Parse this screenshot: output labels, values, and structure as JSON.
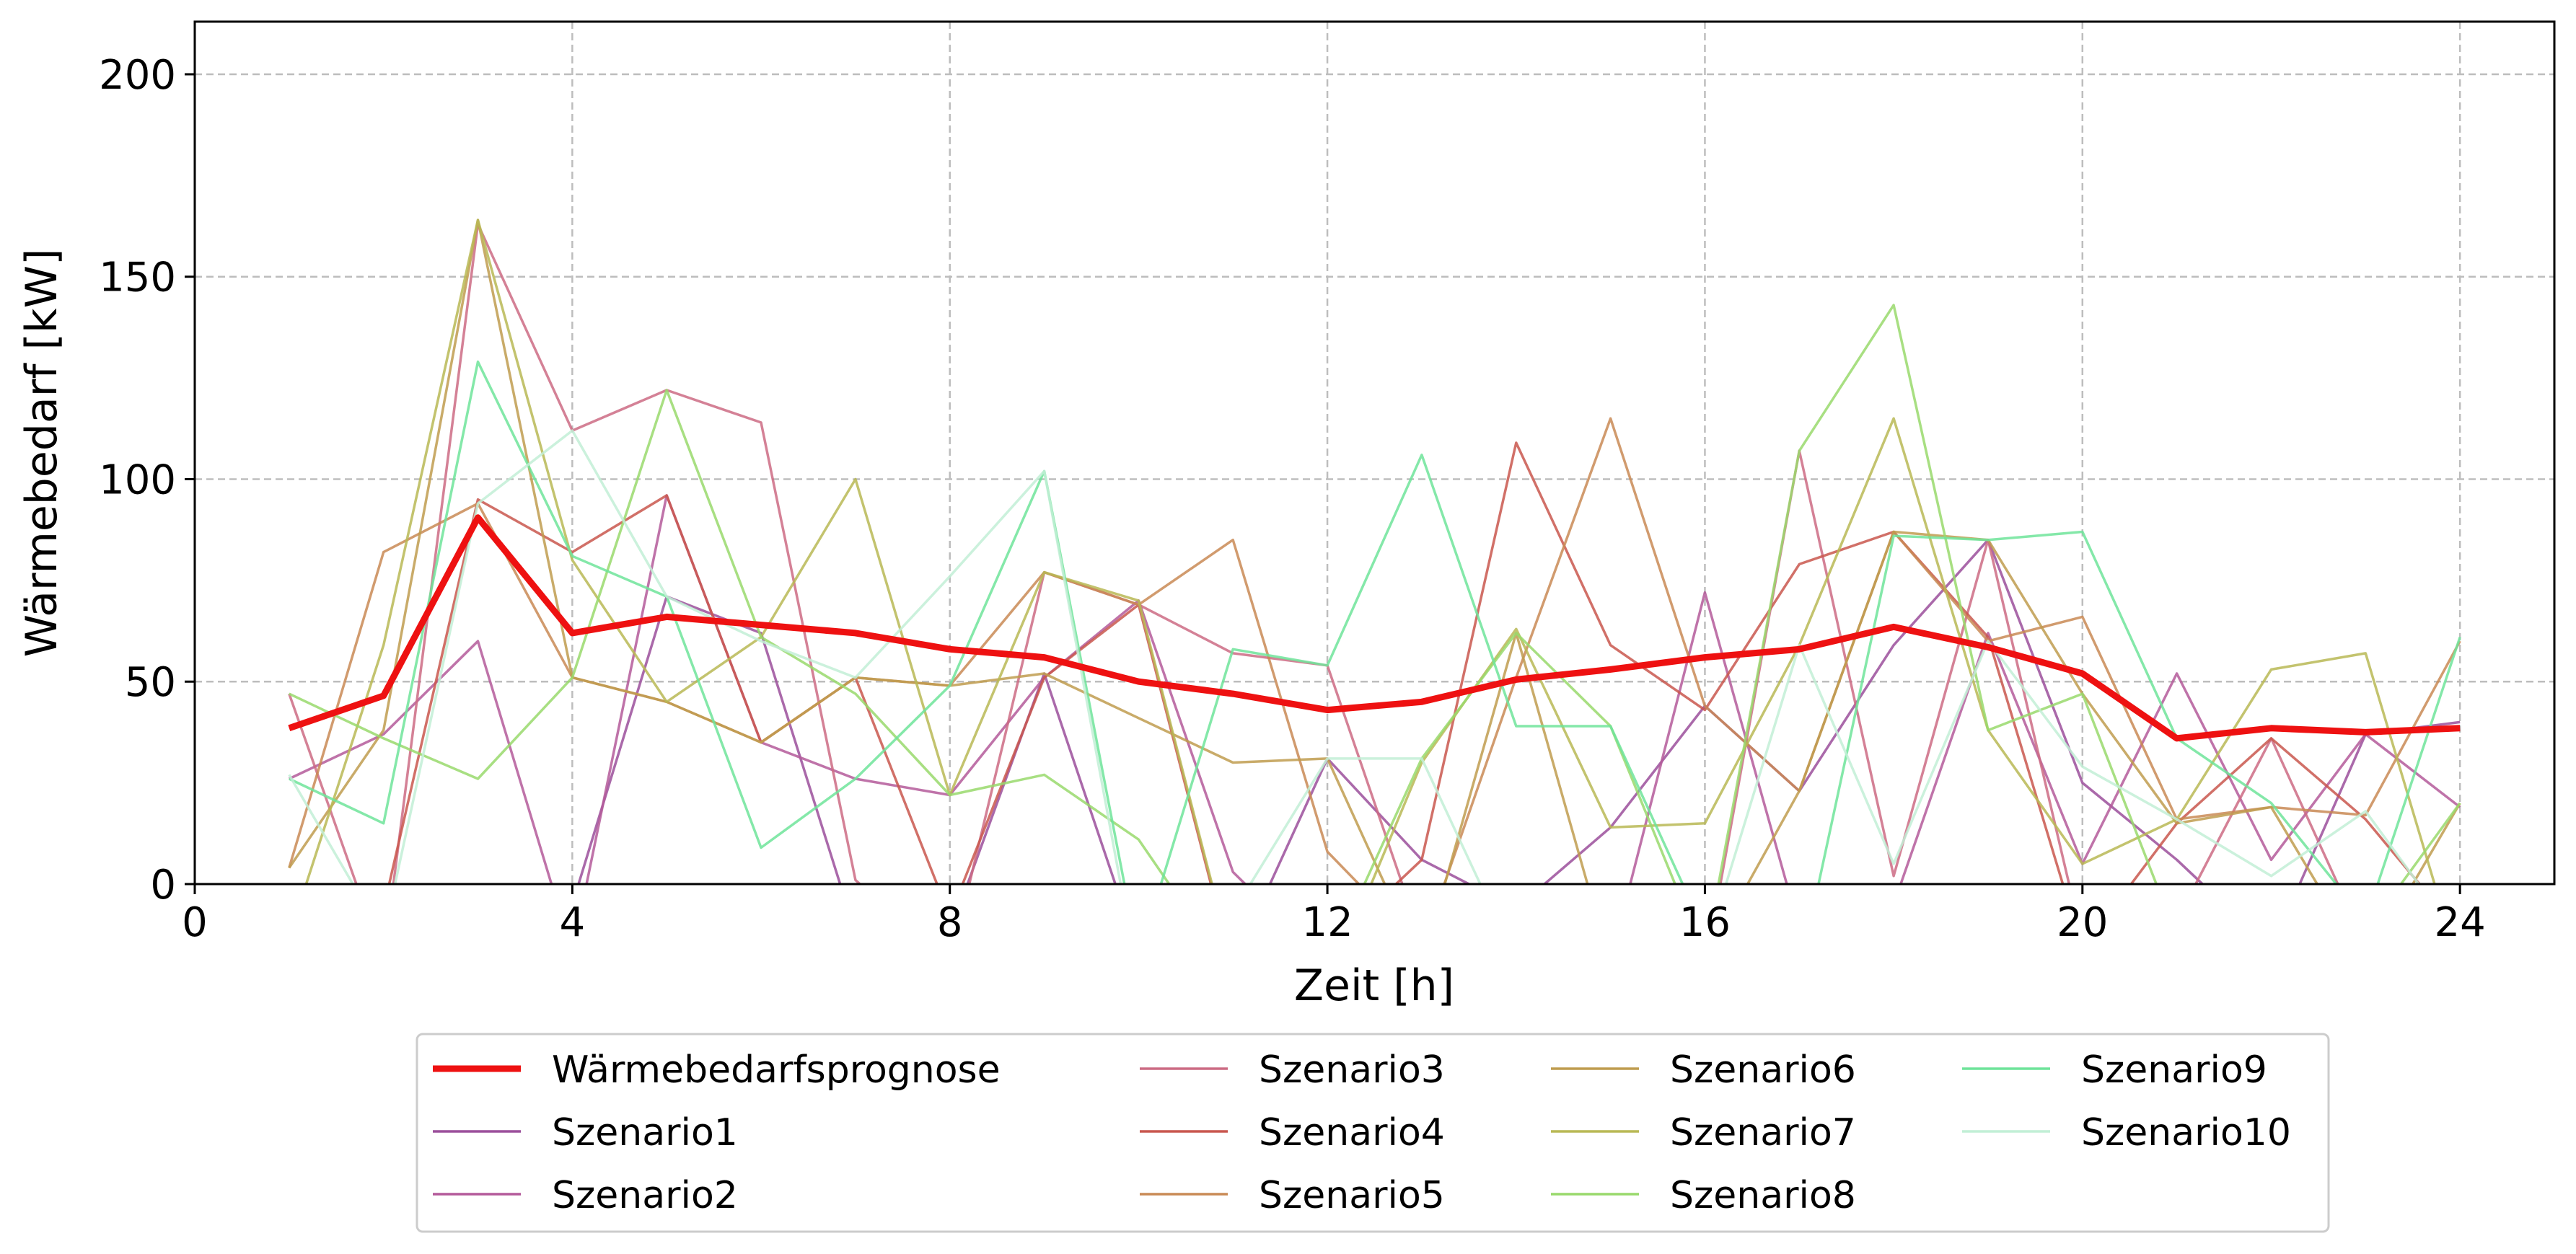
{
  "chart_data": {
    "type": "line",
    "xlabel": "Zeit [h]",
    "ylabel": "Wärmebedarf [kW]",
    "xlim": [
      0,
      25
    ],
    "ylim": [
      0,
      213
    ],
    "xticks": [
      0,
      4,
      8,
      12,
      16,
      20,
      24
    ],
    "yticks": [
      0,
      50,
      100,
      150,
      200
    ],
    "grid": true,
    "legend_placement": "bottom-center",
    "legend_columns": 4,
    "x": [
      1,
      2,
      3,
      4,
      5,
      6,
      7,
      8,
      9,
      10,
      11,
      12,
      13,
      14,
      15,
      16,
      17,
      18,
      19,
      20,
      21,
      22,
      23,
      24
    ],
    "series": [
      {
        "name": "Wärmebedarfsprognose",
        "color": "#ee1111",
        "bold": true,
        "values": [
          38.5,
          46.5,
          90.5,
          62,
          66,
          64,
          62,
          58,
          56,
          50,
          47,
          43,
          45,
          50.5,
          53,
          56,
          58,
          63.5,
          58.5,
          52,
          36,
          38.5,
          37.5,
          38.5
        ]
      },
      {
        "name": "Szenario1",
        "color": "#9b4f9b",
        "values": [
          -14,
          -19,
          -8,
          -5,
          71,
          62,
          -12,
          -12,
          52,
          -17,
          -20,
          31,
          6,
          -6,
          14,
          44,
          23,
          59,
          85,
          25,
          6,
          -16,
          37,
          40
        ]
      },
      {
        "name": "Szenario2",
        "color": "#b45a9a",
        "values": [
          26,
          37,
          60,
          -17,
          96,
          35,
          26,
          22,
          51,
          70,
          3,
          -20,
          -10,
          -23,
          -19,
          72,
          -11,
          -5,
          62,
          5,
          52,
          6,
          37,
          19
        ]
      },
      {
        "name": "Szenario3",
        "color": "#cc6b84",
        "values": [
          47,
          -19,
          163,
          112,
          122,
          114,
          1,
          -20,
          77,
          69,
          57,
          54,
          -14,
          -12,
          -24,
          -21,
          107,
          2,
          85,
          -14,
          -9,
          36,
          -15,
          -21
        ]
      },
      {
        "name": "Szenario4",
        "color": "#c9574e",
        "values": [
          -13,
          -6,
          95,
          82,
          96,
          35,
          51,
          -8,
          51,
          69,
          -21,
          -16,
          6,
          109,
          59,
          43,
          79,
          87,
          61,
          -16,
          15,
          36,
          16,
          -12
        ]
      },
      {
        "name": "Szenario5",
        "color": "#c98a55",
        "values": [
          4,
          82,
          94,
          51,
          45,
          35,
          51,
          49,
          77,
          69,
          85,
          8,
          -16,
          51,
          115,
          44,
          23,
          87,
          60,
          66,
          16,
          19,
          17,
          60
        ]
      },
      {
        "name": "Szenario6",
        "color": "#bf9c4f",
        "values": [
          4,
          38,
          164,
          51,
          45,
          35,
          51,
          49,
          52,
          41,
          30,
          31,
          -20,
          62,
          -20,
          -19,
          23,
          87,
          85,
          47,
          15,
          19,
          -20,
          20
        ]
      },
      {
        "name": "Szenario7",
        "color": "#b9b955",
        "values": [
          -13,
          59,
          164,
          80,
          45,
          61,
          100,
          22,
          77,
          70,
          -20,
          -26,
          30,
          63,
          14,
          15,
          59,
          115,
          38,
          5,
          16,
          53,
          57,
          -21
        ]
      },
      {
        "name": "Szenario8",
        "color": "#99d96c",
        "values": [
          47,
          36,
          26,
          51,
          122,
          61,
          47,
          22,
          27,
          11,
          -23,
          -20,
          31,
          62,
          39,
          -18,
          107,
          143,
          38,
          47,
          -13,
          -14,
          -12,
          20
        ]
      },
      {
        "name": "Szenario9",
        "color": "#6ee49a",
        "values": [
          26,
          15,
          129,
          81,
          71,
          9,
          26,
          49,
          102,
          -18,
          58,
          54,
          106,
          39,
          39,
          -12,
          -22,
          86,
          85,
          87,
          36,
          20,
          -9,
          61
        ]
      },
      {
        "name": "Szenario10",
        "color": "#c2efd6",
        "values": [
          27,
          -13,
          94,
          112,
          71,
          60,
          51,
          76,
          102,
          -24,
          -7,
          31,
          31,
          -19,
          -28,
          -17,
          59,
          5,
          60,
          29,
          16,
          2,
          18,
          -14
        ]
      }
    ]
  }
}
